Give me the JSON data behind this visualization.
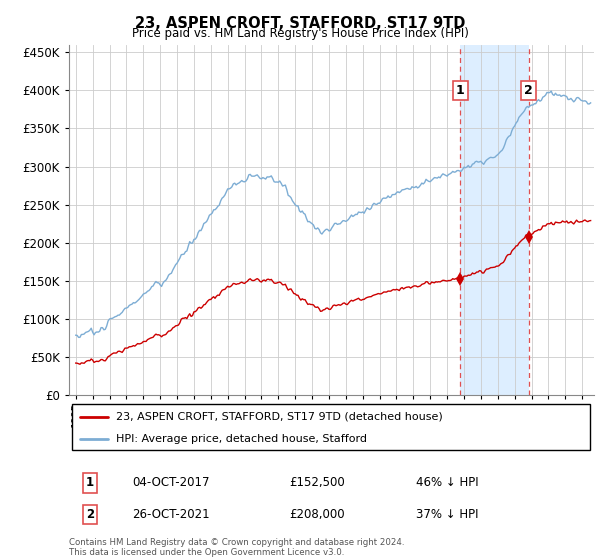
{
  "title": "23, ASPEN CROFT, STAFFORD, ST17 9TD",
  "subtitle": "Price paid vs. HM Land Registry's House Price Index (HPI)",
  "legend_line1": "23, ASPEN CROFT, STAFFORD, ST17 9TD (detached house)",
  "legend_line2": "HPI: Average price, detached house, Stafford",
  "annotation1_label": "1",
  "annotation1_date": "04-OCT-2017",
  "annotation1_price": "£152,500",
  "annotation1_hpi": "46% ↓ HPI",
  "annotation1_year": 2017.78,
  "annotation1_value": 152500,
  "annotation2_label": "2",
  "annotation2_date": "26-OCT-2021",
  "annotation2_price": "£208,000",
  "annotation2_hpi": "37% ↓ HPI",
  "annotation2_year": 2021.82,
  "annotation2_value": 208000,
  "footer": "Contains HM Land Registry data © Crown copyright and database right 2024.\nThis data is licensed under the Open Government Licence v3.0.",
  "hpi_color": "#7dadd4",
  "property_color": "#cc0000",
  "vline_color": "#e05050",
  "span_color": "#ddeeff",
  "ylim_min": 0,
  "ylim_max": 460000,
  "yticks": [
    0,
    50000,
    100000,
    150000,
    200000,
    250000,
    300000,
    350000,
    400000,
    450000
  ],
  "xlim_min": 1994.6,
  "xlim_max": 2025.7
}
